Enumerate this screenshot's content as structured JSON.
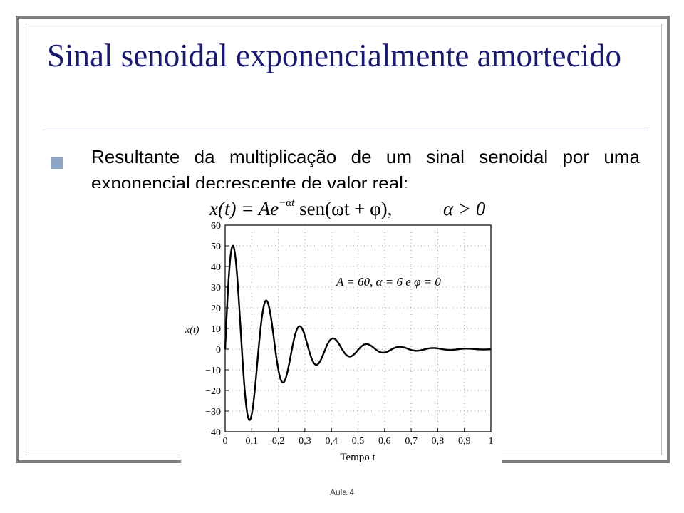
{
  "slide": {
    "title": "Sinal senoidal exponencialmente amortecido",
    "bullet": "Resultante da multiplicação de um sinal senoidal por uma exponencial decrescente de valor real:",
    "footer": "Aula 4"
  },
  "formula": {
    "lhs": "x(t) = Ae",
    "exponent": "−αt",
    "rhs": " sen(ωt + φ),",
    "condition": "α > 0"
  },
  "colors": {
    "title": "#1a1a6e",
    "bullet": "#8da6c8",
    "frame": "#7f7f7f"
  },
  "chart_data": {
    "type": "line",
    "ylabel": "x(t)",
    "xlabel": "Tempo t",
    "annotation": "A = 60, α = 6 e φ = 0",
    "params": {
      "A": 60,
      "alpha": 6,
      "omega": 50,
      "phi": 0
    },
    "xlim": [
      0,
      1
    ],
    "ylim": [
      -40,
      60
    ],
    "x_ticks": [
      0,
      0.1,
      0.2,
      0.3,
      0.4,
      0.5,
      0.6,
      0.7,
      0.8,
      0.9,
      1
    ],
    "x_tick_labels": [
      "0",
      "0,1",
      "0,2",
      "0,3",
      "0,4",
      "0,5",
      "0,6",
      "0,7",
      "0,8",
      "0,9",
      "1"
    ],
    "y_ticks": [
      60,
      50,
      40,
      30,
      20,
      10,
      0,
      -10,
      -20,
      -30,
      -40
    ],
    "y_tick_labels": [
      "60",
      "50",
      "40",
      "30",
      "20",
      "10",
      "0",
      "−10",
      "−20",
      "−30",
      "−40"
    ],
    "grid": "dotted"
  }
}
